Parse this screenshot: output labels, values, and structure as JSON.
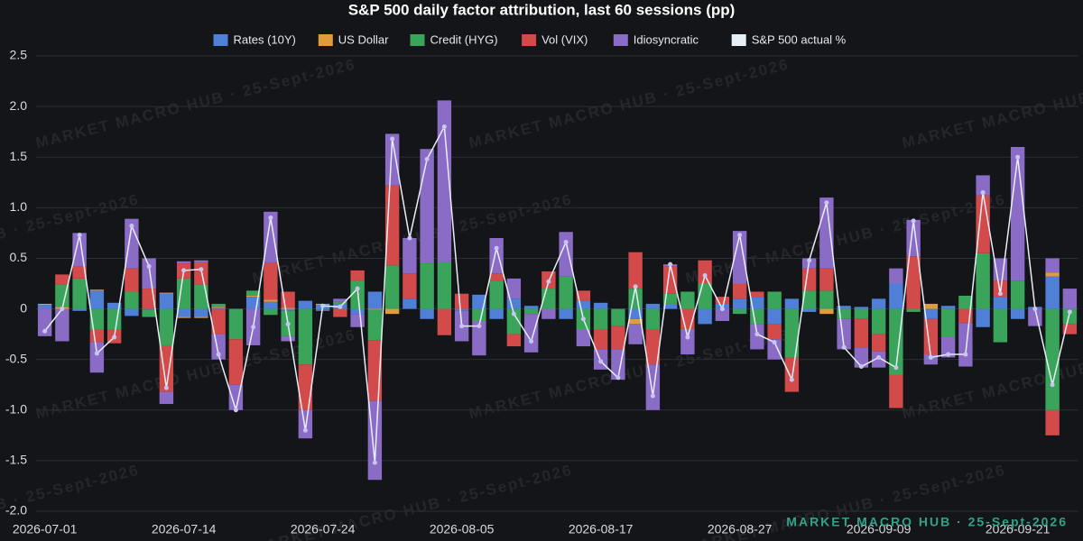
{
  "chart_data": {
    "type": "bar",
    "stacked": true,
    "title": "S&P 500 daily factor attribution, last 60 sessions (pp)",
    "watermark": "MARKET MACRO HUB · 25-Sept-2026",
    "categories": [
      "2026-07-01",
      null,
      null,
      null,
      null,
      null,
      null,
      null,
      "2026-07-14",
      null,
      null,
      null,
      null,
      null,
      null,
      null,
      "2026-07-24",
      null,
      null,
      null,
      null,
      null,
      null,
      null,
      "2026-08-05",
      null,
      null,
      null,
      null,
      null,
      null,
      null,
      "2026-08-17",
      null,
      null,
      null,
      null,
      null,
      null,
      null,
      "2026-08-27",
      null,
      null,
      null,
      null,
      null,
      null,
      null,
      "2026-09-09",
      null,
      null,
      null,
      null,
      null,
      null,
      null,
      "2026-09-21",
      null,
      null,
      null
    ],
    "ylim": [
      -2,
      2.5
    ],
    "yticks": [
      {
        "value": -2,
        "label": "-2.0"
      },
      {
        "value": -1.5,
        "label": "-1.5"
      },
      {
        "value": -1,
        "label": "-1.0"
      },
      {
        "value": -0.5,
        "label": "-0.5"
      },
      0,
      0.5,
      {
        "value": 1,
        "label": "1.0"
      },
      1.5,
      {
        "value": 2,
        "label": "2.0"
      },
      2.5
    ],
    "grid": true,
    "series": [
      {
        "name": "Rates (10Y)",
        "color": "#4f7fd6",
        "values": [
          0.04,
          0,
          -0.02,
          0.18,
          0.06,
          -0.07,
          -0.01,
          0.15,
          -0.08,
          -0.08,
          0.01,
          0,
          0.12,
          0.07,
          -0.02,
          0.08,
          0.04,
          0.05,
          -0.05,
          0.17,
          0,
          0.1,
          -0.1,
          0,
          -0.02,
          0.14,
          -0.1,
          0.1,
          0.03,
          0,
          -0.1,
          0.08,
          0.06,
          0,
          -0.1,
          0.05,
          0.05,
          0,
          -0.15,
          0.05,
          0.1,
          0.12,
          -0.15,
          0.1,
          -0.03,
          0,
          0.03,
          0.02,
          0.1,
          0.25,
          0,
          -0.1,
          0.03,
          0,
          -0.18,
          0.12,
          -0.1,
          0.02,
          0.32,
          0
        ]
      },
      {
        "name": "US Dollar",
        "color": "#e09b3d",
        "values": [
          0.01,
          0.02,
          0,
          0.01,
          0,
          0,
          0,
          0.01,
          -0.01,
          -0.01,
          0.01,
          0,
          0.01,
          0.02,
          0.01,
          0,
          0.01,
          0,
          0,
          -0.01,
          -0.05,
          0,
          0,
          0,
          0,
          0,
          0,
          0,
          0,
          0,
          0,
          0,
          0,
          0,
          -0.05,
          0,
          0,
          0,
          0,
          0,
          0,
          0,
          0,
          0,
          0,
          -0.05,
          0,
          0,
          0,
          0,
          0,
          0.05,
          0,
          0,
          0,
          0,
          0,
          0,
          0.04,
          0
        ]
      },
      {
        "name": "Credit (HYG)",
        "color": "#3aa55a",
        "values": [
          0,
          0.22,
          0.3,
          -0.2,
          -0.2,
          0.17,
          -0.07,
          -0.36,
          0.3,
          0.24,
          0.03,
          -0.3,
          0.05,
          -0.06,
          -0.25,
          -0.55,
          -0.01,
          0.02,
          0.28,
          -0.3,
          0.43,
          0,
          0.45,
          0.46,
          0,
          -0.12,
          0.28,
          -0.25,
          -0.05,
          0.2,
          0.32,
          -0.2,
          -0.2,
          -0.17,
          0.2,
          -0.2,
          0.1,
          0.17,
          0.25,
          0,
          -0.05,
          -0.15,
          0.17,
          -0.48,
          0.18,
          0.18,
          -0.1,
          -0.1,
          -0.25,
          -0.65,
          -0.03,
          0,
          -0.28,
          0.13,
          0.55,
          -0.33,
          0.28,
          0,
          -1.0,
          -0.15
        ]
      },
      {
        "name": "Vol (VIX)",
        "color": "#d24a4a",
        "values": [
          0,
          0.1,
          0.12,
          -0.13,
          -0.14,
          0.23,
          0.2,
          -0.46,
          0.15,
          0.22,
          -0.25,
          -0.45,
          0,
          0.37,
          0.16,
          -0.45,
          0,
          -0.08,
          0.1,
          -0.6,
          0.79,
          0.25,
          0,
          -0.26,
          0.15,
          0,
          0.07,
          -0.12,
          0,
          0.17,
          0,
          0.1,
          -0.2,
          -0.23,
          0.36,
          -0.35,
          0.27,
          -0.2,
          0.23,
          0.07,
          0.15,
          0.05,
          -0.15,
          -0.34,
          0.22,
          0.22,
          0,
          -0.28,
          -0.17,
          -0.33,
          0.52,
          -0.35,
          0,
          -0.14,
          0.57,
          0.16,
          0,
          0,
          -0.25,
          -0.1
        ]
      },
      {
        "name": "Idiosyncratic",
        "color": "#8a6cc6",
        "values": [
          -0.27,
          -0.32,
          0.33,
          -0.3,
          0,
          0.49,
          0.3,
          -0.12,
          0.02,
          0.02,
          -0.25,
          -0.25,
          -0.36,
          0.5,
          -0.05,
          -0.28,
          -0.01,
          0.03,
          -0.13,
          -0.78,
          0.51,
          0.35,
          1.13,
          1.6,
          -0.3,
          -0.34,
          0.35,
          0.2,
          -0.38,
          -0.1,
          0.44,
          -0.17,
          -0.2,
          -0.3,
          -0.2,
          -0.45,
          0.02,
          -0.25,
          0,
          -0.12,
          0.52,
          -0.25,
          -0.2,
          0,
          0.1,
          0.7,
          -0.3,
          -0.2,
          -0.16,
          0.15,
          0.36,
          -0.1,
          -0.2,
          -0.43,
          0.2,
          0.22,
          1.32,
          -0.17,
          0.14,
          0.2
        ]
      },
      {
        "name": "S&P 500 actual %",
        "color": "#e8eef8",
        "type": "line",
        "values": [
          -0.22,
          0,
          0.73,
          -0.44,
          -0.28,
          0.82,
          0.42,
          -0.78,
          0.38,
          0.39,
          -0.45,
          -1.0,
          -0.18,
          0.9,
          -0.15,
          -1.2,
          0.03,
          0.02,
          0.2,
          -1.52,
          1.68,
          0.7,
          1.48,
          1.8,
          -0.17,
          -0.17,
          0.6,
          -0.05,
          -0.32,
          0.27,
          0.66,
          -0.1,
          -0.52,
          -0.68,
          0.22,
          -0.86,
          0.44,
          -0.28,
          0.33,
          0,
          0.73,
          -0.25,
          -0.33,
          -0.7,
          0.48,
          1.05,
          -0.38,
          -0.57,
          -0.48,
          -0.58,
          0.87,
          -0.48,
          -0.45,
          -0.45,
          1.15,
          0.15,
          1.5,
          0,
          -0.75,
          -0.03
        ]
      }
    ]
  }
}
